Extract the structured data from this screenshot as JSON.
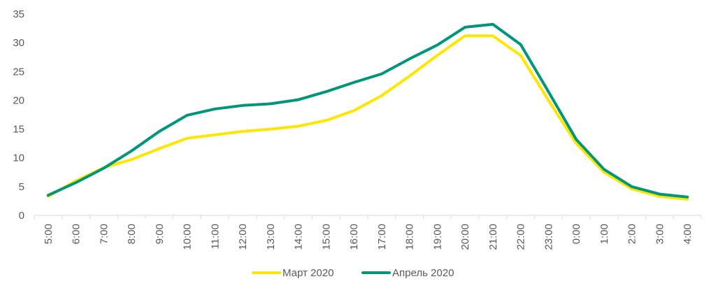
{
  "chart_data": {
    "type": "line",
    "title": "",
    "xlabel": "",
    "ylabel": "",
    "categories": [
      "5:00",
      "6:00",
      "7:00",
      "8:00",
      "9:00",
      "10:00",
      "11:00",
      "12:00",
      "13:00",
      "14:00",
      "15:00",
      "16:00",
      "17:00",
      "18:00",
      "19:00",
      "20:00",
      "21:00",
      "22:00",
      "23:00",
      "0:00",
      "1:00",
      "2:00",
      "3:00",
      "4:00"
    ],
    "ylim": [
      0,
      35
    ],
    "yticks": [
      "0",
      "5",
      "10",
      "15",
      "20",
      "25",
      "30",
      "35"
    ],
    "grid": false,
    "legend_position": "bottom",
    "series": [
      {
        "name": "Март 2020",
        "color": "#FFE600",
        "values": [
          3.3,
          6.0,
          8.3,
          9.7,
          11.6,
          13.4,
          14.0,
          14.6,
          15.0,
          15.5,
          16.5,
          18.2,
          20.8,
          24.2,
          27.8,
          31.2,
          31.2,
          27.8,
          20.0,
          12.5,
          7.5,
          4.6,
          3.3,
          2.8
        ]
      },
      {
        "name": "Апрель 2020",
        "color": "#00967A",
        "values": [
          3.5,
          5.7,
          8.2,
          11.2,
          14.6,
          17.4,
          18.5,
          19.1,
          19.4,
          20.1,
          21.5,
          23.1,
          24.6,
          27.2,
          29.6,
          32.7,
          33.2,
          29.7,
          21.5,
          13.2,
          8.0,
          5.0,
          3.7,
          3.2
        ]
      }
    ]
  }
}
